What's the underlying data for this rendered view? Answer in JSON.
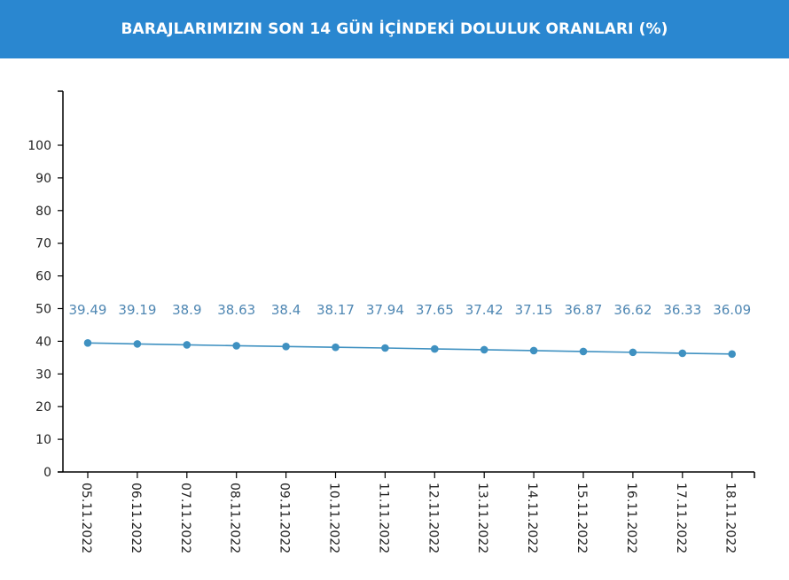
{
  "header": {
    "title": "BARAJLARIMIZIN SON 14 GÜN İÇİNDEKİ DOLULUK ORANLARI (%)"
  },
  "colors": {
    "header_bg": "#2a87d0",
    "series": "#3f91c1",
    "data_label": "#4f87b3"
  },
  "chart_data": {
    "type": "line",
    "title": "BARAJLARIMIZIN SON 14 GÜN İÇİNDEKİ DOLULUK ORANLARI (%)",
    "xlabel": "",
    "ylabel": "",
    "ylim": [
      0,
      115
    ],
    "yticks": [
      0,
      10,
      20,
      30,
      40,
      50,
      60,
      70,
      80,
      90,
      100
    ],
    "grid": false,
    "categories": [
      "05.11.2022",
      "06.11.2022",
      "07.11.2022",
      "08.11.2022",
      "09.11.2022",
      "10.11.2022",
      "11.11.2022",
      "12.11.2022",
      "13.11.2022",
      "14.11.2022",
      "15.11.2022",
      "16.11.2022",
      "17.11.2022",
      "18.11.2022"
    ],
    "series": [
      {
        "values": [
          39.49,
          39.19,
          38.9,
          38.63,
          38.4,
          38.17,
          37.94,
          37.65,
          37.42,
          37.15,
          36.87,
          36.62,
          36.33,
          36.09
        ],
        "labels": [
          "39.49",
          "39.19",
          "38.9",
          "38.63",
          "38.4",
          "38.17",
          "37.94",
          "37.65",
          "37.42",
          "37.15",
          "36.87",
          "36.62",
          "36.33",
          "36.09"
        ]
      }
    ]
  }
}
